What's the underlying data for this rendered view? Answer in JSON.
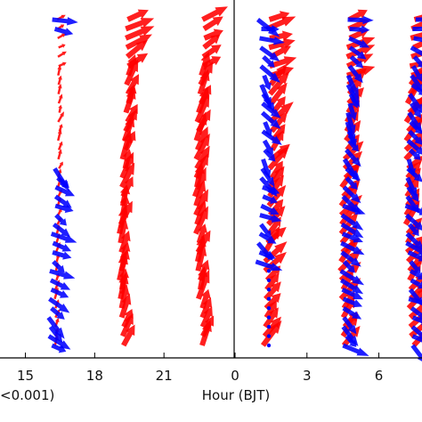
{
  "chart_data": [
    {
      "type": "vector-profile",
      "panel": "left (cropped)",
      "xlabel_visible_fragment": "<0.001)",
      "x_ticks": [
        "15",
        "18",
        "21"
      ],
      "x_tick_values": [
        15,
        18,
        21
      ],
      "x_range": [
        13.9,
        24
      ],
      "series": [
        {
          "color": "#ff0000",
          "columns": [
            {
              "hour": 16.5,
              "mark": "small arrows with blue overlay"
            },
            {
              "hour": 19.6,
              "mark": "large arrows"
            },
            {
              "hour": 22.9,
              "mark": "large arrows"
            }
          ]
        },
        {
          "color": "#0000ff",
          "columns": [
            {
              "hour": 16.5,
              "mark": "arrows near top and lower half"
            }
          ]
        }
      ]
    },
    {
      "type": "vector-profile",
      "panel": "right (cropped)",
      "xlabel": "Hour (BJT)",
      "x_ticks": [
        "0",
        "3",
        "6"
      ],
      "x_tick_values": [
        0,
        3,
        6
      ],
      "x_range": [
        0,
        7.8
      ],
      "series": [
        {
          "color": "#ff0000",
          "columns": [
            {
              "hour": 1.7,
              "mark": "large arrows"
            },
            {
              "hour": 4.9,
              "mark": "large arrows"
            },
            {
              "hour": 7.6,
              "mark": "large arrows, partly cut off"
            }
          ]
        },
        {
          "color": "#0000ff",
          "columns": [
            {
              "hour": 1.3,
              "mark": "arrows in upper half"
            },
            {
              "hour": 4.9,
              "mark": "arrows overlaid on red"
            },
            {
              "hour": 7.6,
              "mark": "arrows overlaid on red"
            }
          ]
        }
      ]
    }
  ],
  "colors": {
    "red": "#ff0000",
    "blue": "#0000ff",
    "axis": "#000000"
  }
}
